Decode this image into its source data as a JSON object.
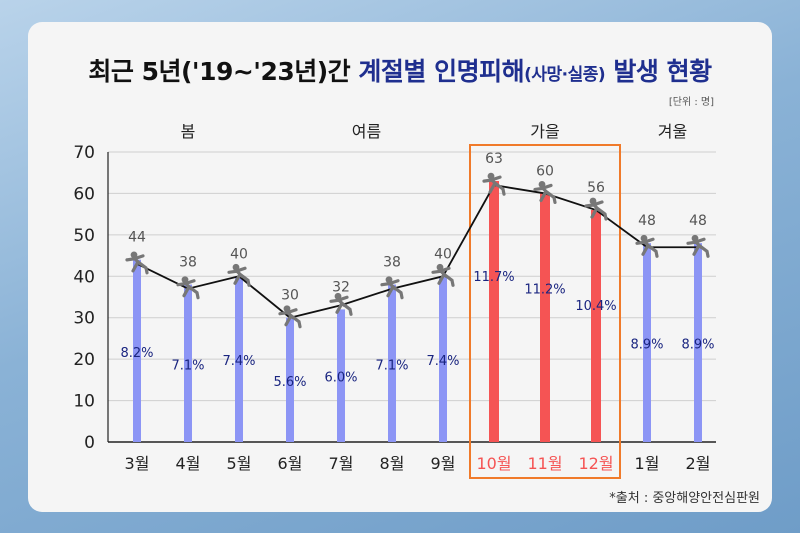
{
  "title": {
    "part1": "최근 5년('19~'23년)간 ",
    "part2": "계절별 인명피해",
    "part3": "(사망·실종)",
    "part4": " 발생 현황"
  },
  "unit_label": "[단위 : 명]",
  "source": "*출처 : 중앙해양안전심판원",
  "colors": {
    "bar": "#8c95f5",
    "highlight_bar": "#f55454",
    "highlight_text": "#f55454",
    "highlight_box": "#f07a2a",
    "pct_text": "#1a2580"
  },
  "chart_data": {
    "type": "bar",
    "categories": [
      "3월",
      "4월",
      "5월",
      "6월",
      "7월",
      "8월",
      "9월",
      "10월",
      "11월",
      "12월",
      "1월",
      "2월"
    ],
    "values": [
      44,
      38,
      40,
      30,
      32,
      38,
      40,
      63,
      60,
      56,
      48,
      48
    ],
    "line_values": [
      43,
      37,
      40,
      30,
      33,
      37,
      40,
      62,
      60,
      56,
      47,
      47
    ],
    "percent_labels": [
      "8.2%",
      "7.1%",
      "7.4%",
      "5.6%",
      "6.0%",
      "7.1%",
      "7.4%",
      "11.7%",
      "11.2%",
      "10.4%",
      "8.9%",
      "8.9%"
    ],
    "highlight": [
      7,
      8,
      9
    ],
    "seasons": [
      {
        "label": "봄",
        "from": 0,
        "to": 2
      },
      {
        "label": "여름",
        "from": 3,
        "to": 6
      },
      {
        "label": "가을",
        "from": 7,
        "to": 9
      },
      {
        "label": "겨울",
        "from": 10,
        "to": 11
      }
    ],
    "yticks": [
      0,
      10,
      20,
      30,
      40,
      50,
      60,
      70
    ],
    "ylim": [
      0,
      70
    ],
    "grid": true
  }
}
